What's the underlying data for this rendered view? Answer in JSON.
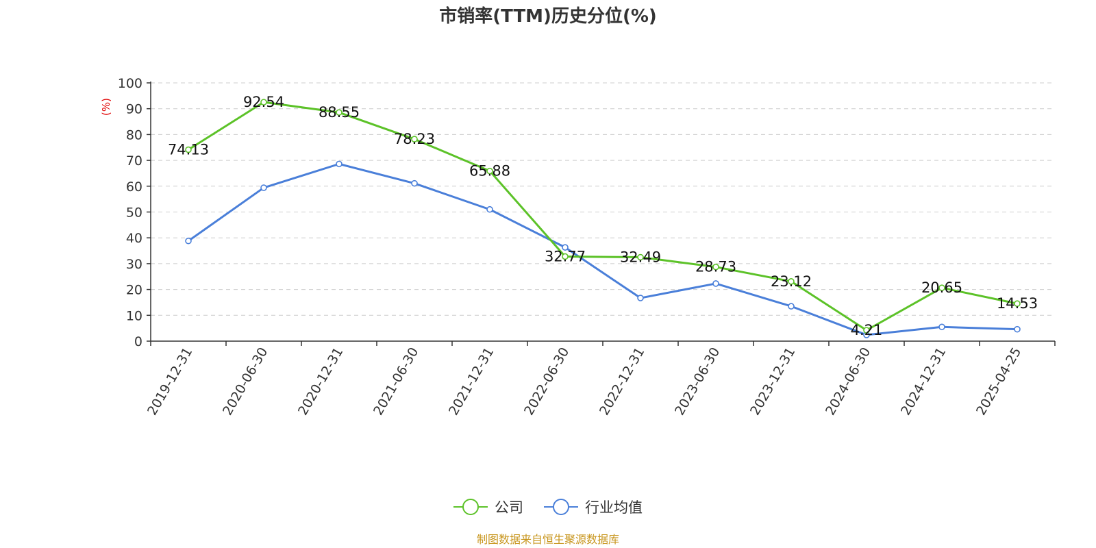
{
  "chart_data": {
    "type": "line",
    "title": "市销率(TTM)历史分位(%)",
    "ylabel": "(%)",
    "xlabel": "",
    "ylim": [
      0,
      100
    ],
    "yticks": [
      0,
      10,
      20,
      30,
      40,
      50,
      60,
      70,
      80,
      90,
      100
    ],
    "grid": true,
    "legend_position": "bottom-center",
    "categories": [
      "2019-12-31",
      "2020-06-30",
      "2020-12-31",
      "2021-06-30",
      "2021-12-31",
      "2022-06-30",
      "2022-12-31",
      "2023-06-30",
      "2023-12-31",
      "2024-06-30",
      "2024-12-31",
      "2025-04-25"
    ],
    "series": [
      {
        "name": "公司",
        "color": "#5cc228",
        "values": [
          74.13,
          92.54,
          88.55,
          78.23,
          65.88,
          32.77,
          32.49,
          28.73,
          23.12,
          4.21,
          20.65,
          14.53
        ],
        "labels": [
          "74.13",
          "92.54",
          "88.55",
          "78.23",
          "65.88",
          "32.77",
          "32.49",
          "28.73",
          "23.12",
          "4.21",
          "20.65",
          "14.53"
        ]
      },
      {
        "name": "行业均值",
        "color": "#4a7fd9",
        "values": [
          38.8,
          59.4,
          68.6,
          61.1,
          51.0,
          36.3,
          16.7,
          22.3,
          13.5,
          2.4,
          5.5,
          4.6
        ]
      }
    ]
  },
  "source_text": "制图数据来自恒生聚源数据库"
}
